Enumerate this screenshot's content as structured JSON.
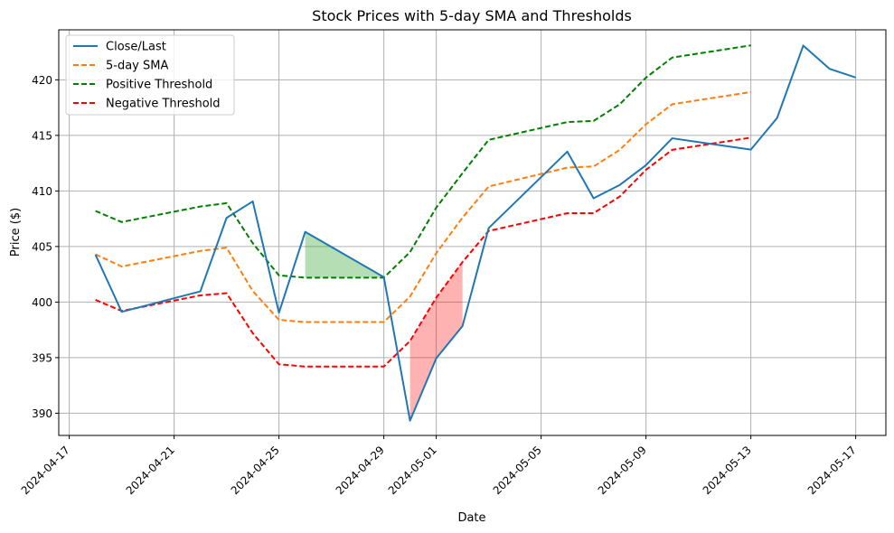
{
  "chart_data": {
    "type": "line",
    "title": "Stock Prices with 5-day SMA and Thresholds",
    "xlabel": "Date",
    "ylabel": "Price ($)",
    "xlim": [
      "2024-04-17",
      "2024-05-17"
    ],
    "ylim": [
      388,
      424.5
    ],
    "x_ticks": [
      "2024-04-17",
      "2024-04-21",
      "2024-04-25",
      "2024-04-29",
      "2024-05-01",
      "2024-05-05",
      "2024-05-09",
      "2024-05-13",
      "2024-05-17"
    ],
    "y_ticks": [
      390,
      395,
      400,
      405,
      410,
      415,
      420
    ],
    "grid": true,
    "legend_position": "top-left",
    "series": [
      {
        "name": "Close/Last",
        "color": "#1f77b4",
        "style": "solid",
        "points": [
          [
            "2024-04-18",
            404.27
          ],
          [
            "2024-04-19",
            399.12
          ],
          [
            "2024-04-22",
            400.96
          ],
          [
            "2024-04-23",
            407.57
          ],
          [
            "2024-04-24",
            409.06
          ],
          [
            "2024-04-25",
            399.04
          ],
          [
            "2024-04-26",
            406.32
          ],
          [
            "2024-04-29",
            402.25
          ],
          [
            "2024-04-30",
            389.33
          ],
          [
            "2024-05-01",
            394.94
          ],
          [
            "2024-05-02",
            397.84
          ],
          [
            "2024-05-03",
            406.66
          ],
          [
            "2024-05-06",
            413.54
          ],
          [
            "2024-05-07",
            409.34
          ],
          [
            "2024-05-08",
            410.54
          ],
          [
            "2024-05-09",
            412.32
          ],
          [
            "2024-05-10",
            414.74
          ],
          [
            "2024-05-13",
            413.72
          ],
          [
            "2024-05-14",
            416.56
          ],
          [
            "2024-05-15",
            423.08
          ],
          [
            "2024-05-16",
            420.99
          ],
          [
            "2024-05-17",
            420.21
          ]
        ]
      },
      {
        "name": "5-day SMA",
        "color": "#ff7f0e",
        "style": "dashed",
        "points": [
          [
            "2024-04-18",
            404.3
          ],
          [
            "2024-04-19",
            403.2
          ],
          [
            "2024-04-22",
            404.6
          ],
          [
            "2024-04-23",
            404.9
          ],
          [
            "2024-04-24",
            401.0
          ],
          [
            "2024-04-25",
            398.4
          ],
          [
            "2024-04-26",
            398.2
          ],
          [
            "2024-04-29",
            398.2
          ],
          [
            "2024-04-30",
            400.5
          ],
          [
            "2024-05-01",
            404.4
          ],
          [
            "2024-05-02",
            407.6
          ],
          [
            "2024-05-03",
            410.4
          ],
          [
            "2024-05-06",
            412.1
          ],
          [
            "2024-05-07",
            412.2
          ],
          [
            "2024-05-08",
            413.7
          ],
          [
            "2024-05-09",
            416.0
          ],
          [
            "2024-05-10",
            417.8
          ],
          [
            "2024-05-13",
            418.9
          ]
        ]
      },
      {
        "name": "Positive Threshold",
        "color": "#008000",
        "style": "dashed",
        "points": [
          [
            "2024-04-18",
            408.2
          ],
          [
            "2024-04-19",
            407.2
          ],
          [
            "2024-04-22",
            408.6
          ],
          [
            "2024-04-23",
            408.9
          ],
          [
            "2024-04-24",
            405.3
          ],
          [
            "2024-04-25",
            402.4
          ],
          [
            "2024-04-26",
            402.2
          ],
          [
            "2024-04-29",
            402.2
          ],
          [
            "2024-04-30",
            404.5
          ],
          [
            "2024-05-01",
            408.5
          ],
          [
            "2024-05-02",
            411.6
          ],
          [
            "2024-05-03",
            414.6
          ],
          [
            "2024-05-06",
            416.2
          ],
          [
            "2024-05-07",
            416.3
          ],
          [
            "2024-05-08",
            417.8
          ],
          [
            "2024-05-09",
            420.2
          ],
          [
            "2024-05-10",
            422.0
          ],
          [
            "2024-05-13",
            423.1
          ]
        ]
      },
      {
        "name": "Negative Threshold",
        "color": "#ff0000",
        "style": "dashed",
        "points": [
          [
            "2024-04-18",
            400.2
          ],
          [
            "2024-04-19",
            399.2
          ],
          [
            "2024-04-22",
            400.6
          ],
          [
            "2024-04-23",
            400.8
          ],
          [
            "2024-04-24",
            397.2
          ],
          [
            "2024-04-25",
            394.4
          ],
          [
            "2024-04-26",
            394.2
          ],
          [
            "2024-04-29",
            394.2
          ],
          [
            "2024-04-30",
            396.5
          ],
          [
            "2024-05-01",
            400.4
          ],
          [
            "2024-05-02",
            403.6
          ],
          [
            "2024-05-03",
            406.4
          ],
          [
            "2024-05-06",
            408.0
          ],
          [
            "2024-05-07",
            408.0
          ],
          [
            "2024-05-08",
            409.5
          ],
          [
            "2024-05-09",
            411.9
          ],
          [
            "2024-05-10",
            413.7
          ],
          [
            "2024-05-13",
            414.8
          ]
        ]
      }
    ],
    "fills": [
      {
        "color": "#2ca02c",
        "opacity": 0.35,
        "points": [
          [
            "2024-04-26",
            406.32,
            402.2
          ],
          [
            "2024-04-29",
            402.25,
            402.2
          ]
        ]
      },
      {
        "color": "#ff0000",
        "opacity": 0.3,
        "points": [
          [
            "2024-04-30",
            389.33,
            396.5
          ],
          [
            "2024-05-01",
            394.94,
            400.4
          ],
          [
            "2024-05-02",
            397.84,
            403.6
          ]
        ]
      }
    ]
  }
}
